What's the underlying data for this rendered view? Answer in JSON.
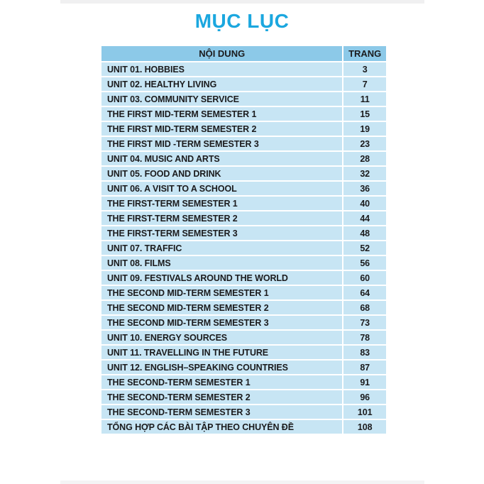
{
  "title": "MỤC LỤC",
  "colors": {
    "accent": "#1ba7df",
    "table_header_bg": "#8cc9e8",
    "table_row_bg": "#c7e5f4",
    "text": "#1b1b1d",
    "page_edge": "#f0f0f1"
  },
  "table": {
    "columns": [
      "NỘI DUNG",
      "TRANG"
    ],
    "rows": [
      {
        "label": "UNIT 01. HOBBIES",
        "page": "3"
      },
      {
        "label": "UNIT 02. HEALTHY LIVING",
        "page": "7"
      },
      {
        "label": "UNIT 03. COMMUNITY SERVICE",
        "page": "11"
      },
      {
        "label": "THE FIRST MID-TERM SEMESTER 1",
        "page": "15"
      },
      {
        "label": "THE FIRST MID-TERM SEMESTER 2",
        "page": "19"
      },
      {
        "label": "THE FIRST MID -TERM SEMESTER 3",
        "page": "23"
      },
      {
        "label": "UNIT 04. MUSIC AND ARTS",
        "page": "28"
      },
      {
        "label": "UNIT 05. FOOD AND DRINK",
        "page": "32"
      },
      {
        "label": "UNIT 06. A VISIT TO A SCHOOL",
        "page": "36"
      },
      {
        "label": "THE FIRST-TERM SEMESTER 1",
        "page": "40"
      },
      {
        "label": "THE FIRST-TERM SEMESTER 2",
        "page": "44"
      },
      {
        "label": "THE FIRST-TERM SEMESTER 3",
        "page": "48"
      },
      {
        "label": "UNIT 07. TRAFFIC",
        "page": "52"
      },
      {
        "label": "UNIT 08. FILMS",
        "page": "56"
      },
      {
        "label": "UNIT 09. FESTIVALS AROUND THE WORLD",
        "page": "60"
      },
      {
        "label": "THE SECOND MID-TERM SEMESTER 1",
        "page": "64"
      },
      {
        "label": "THE SECOND MID-TERM SEMESTER 2",
        "page": "68"
      },
      {
        "label": "THE SECOND MID-TERM SEMESTER 3",
        "page": "73"
      },
      {
        "label": "UNIT 10. ENERGY SOURCES",
        "page": "78"
      },
      {
        "label": "UNIT 11. TRAVELLING IN THE FUTURE",
        "page": "83"
      },
      {
        "label": "UNIT 12. ENGLISH–SPEAKING COUNTRIES",
        "page": "87"
      },
      {
        "label": "THE SECOND-TERM SEMESTER 1",
        "page": "91"
      },
      {
        "label": "THE SECOND-TERM SEMESTER 2",
        "page": "96"
      },
      {
        "label": "THE SECOND-TERM SEMESTER 3",
        "page": "101"
      },
      {
        "label": "TỔNG HỢP CÁC BÀI TẬP THEO CHUYÊN ĐỀ",
        "page": "108"
      }
    ]
  }
}
